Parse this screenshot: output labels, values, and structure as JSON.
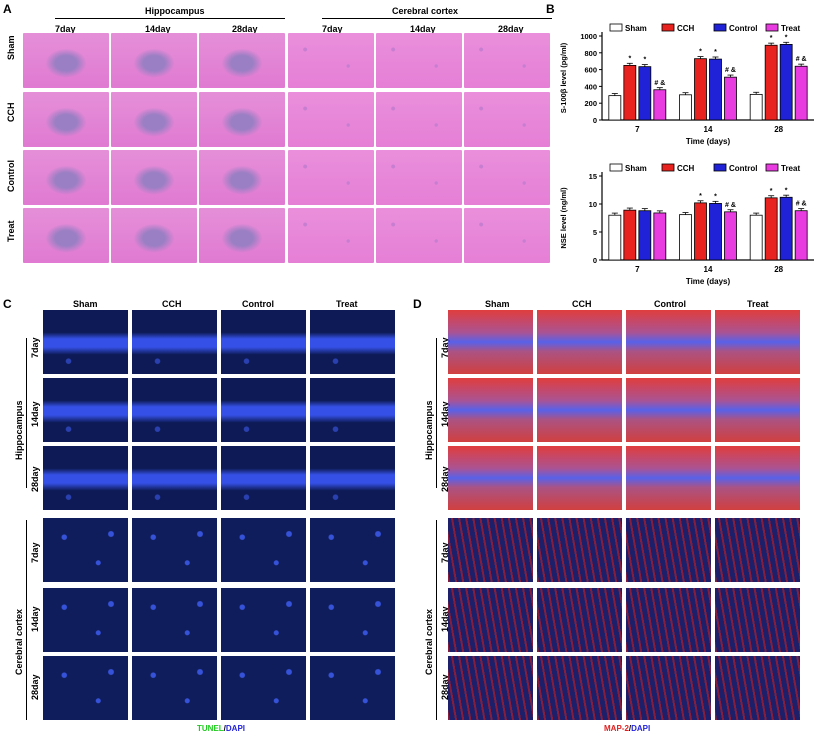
{
  "panels": {
    "a": "A",
    "b": "B",
    "c": "C",
    "d": "D"
  },
  "panelA": {
    "regions": [
      "Hippocampus",
      "Cerebral cortex"
    ],
    "timepoints": [
      "7day",
      "14day",
      "28day"
    ],
    "rows": [
      "Sham",
      "CCH",
      "Control",
      "Treat"
    ]
  },
  "panelC": {
    "columns": [
      "Sham",
      "CCH",
      "Control",
      "Treat"
    ],
    "regions": [
      "Hippocampus",
      "Cerebral cortex"
    ],
    "timepoints": [
      "7day",
      "14day",
      "28day"
    ],
    "stain_green": "TUNEL",
    "stain_slash": "/",
    "stain_blue": "DAPI"
  },
  "panelD": {
    "columns": [
      "Sham",
      "CCH",
      "Control",
      "Treat"
    ],
    "regions": [
      "Hippocampus",
      "Cerebral cortex"
    ],
    "timepoints": [
      "7day",
      "14day",
      "28day"
    ],
    "stain_red": "MAP-2",
    "stain_slash": "/",
    "stain_blue": "DAPI"
  },
  "colors": {
    "Sham": "#ffffff",
    "CCH": "#e8231f",
    "Control": "#1f22d6",
    "Treat": "#e83be0"
  },
  "chart_data": [
    {
      "type": "bar",
      "categories": [
        "7",
        "14",
        "28"
      ],
      "series": [
        {
          "name": "Sham",
          "values": [
            290,
            300,
            305
          ]
        },
        {
          "name": "CCH",
          "values": [
            650,
            730,
            890
          ]
        },
        {
          "name": "Control",
          "values": [
            635,
            725,
            900
          ]
        },
        {
          "name": "Treat",
          "values": [
            360,
            510,
            640
          ]
        }
      ],
      "annotations": [
        {
          "cat": 0,
          "series": 1,
          "text": "*"
        },
        {
          "cat": 0,
          "series": 2,
          "text": "*"
        },
        {
          "cat": 0,
          "series": 3,
          "text": "# &"
        },
        {
          "cat": 1,
          "series": 1,
          "text": "*"
        },
        {
          "cat": 1,
          "series": 2,
          "text": "*"
        },
        {
          "cat": 1,
          "series": 3,
          "text": "# &"
        },
        {
          "cat": 2,
          "series": 1,
          "text": "*"
        },
        {
          "cat": 2,
          "series": 2,
          "text": "*"
        },
        {
          "cat": 2,
          "series": 3,
          "text": "# &"
        }
      ],
      "xlabel": "Time (days)",
      "ylabel": "S-100β level (pg/ml)",
      "ylim": [
        0,
        1000
      ],
      "yticks": [
        0,
        200,
        400,
        600,
        800,
        1000
      ]
    },
    {
      "type": "bar",
      "categories": [
        "7",
        "14",
        "28"
      ],
      "series": [
        {
          "name": "Sham",
          "values": [
            8.0,
            8.1,
            8.0
          ]
        },
        {
          "name": "CCH",
          "values": [
            8.9,
            10.2,
            11.1
          ]
        },
        {
          "name": "Control",
          "values": [
            8.8,
            10.1,
            11.2
          ]
        },
        {
          "name": "Treat",
          "values": [
            8.4,
            8.6,
            8.8
          ]
        }
      ],
      "annotations": [
        {
          "cat": 1,
          "series": 1,
          "text": "*"
        },
        {
          "cat": 1,
          "series": 2,
          "text": "*"
        },
        {
          "cat": 1,
          "series": 3,
          "text": "# &"
        },
        {
          "cat": 2,
          "series": 1,
          "text": "*"
        },
        {
          "cat": 2,
          "series": 2,
          "text": "*"
        },
        {
          "cat": 2,
          "series": 3,
          "text": "# &"
        }
      ],
      "xlabel": "Time (days)",
      "ylabel": "NSE level (ng/ml)",
      "ylim": [
        0,
        15
      ],
      "yticks": [
        0,
        5,
        10,
        15
      ]
    }
  ]
}
